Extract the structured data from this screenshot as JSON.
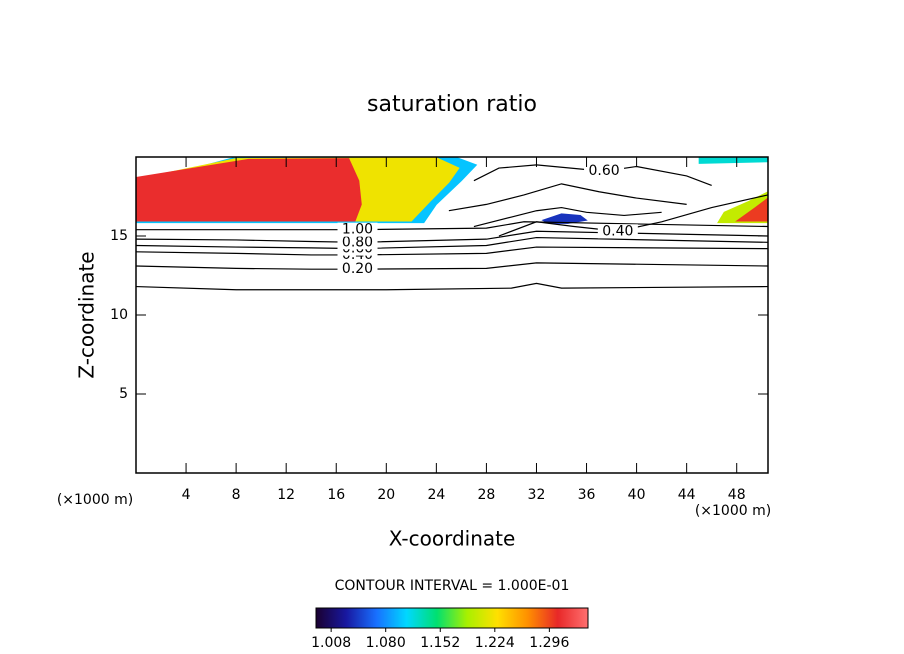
{
  "chart_data": {
    "type": "contour",
    "title": "saturation ratio",
    "x_label": "X-coordinate",
    "y_label": "Z-coordinate",
    "x_unit": "(×1000 m)",
    "y_unit": "(×1000 m)",
    "xlim": [
      0,
      50.5
    ],
    "ylim": [
      0,
      20
    ],
    "xticks": [
      4,
      8,
      12,
      16,
      20,
      24,
      28,
      32,
      36,
      40,
      44,
      48
    ],
    "yticks": [
      5,
      10,
      15
    ],
    "contour_interval": "CONTOUR INTERVAL = 1.000E-01",
    "colormap": [
      "#1a0030",
      "#1818a0",
      "#1870ff",
      "#00d8ff",
      "#00e070",
      "#a8f000",
      "#ffe000",
      "#ff9000",
      "#e82828",
      "#ff7070"
    ],
    "colorbar_lim": [
      0.988,
      1.347
    ],
    "colorbar_ticks": [
      1.008,
      {
        "value": 1.08,
        "label": "1.080"
      },
      1.152,
      1.224,
      1.296
    ],
    "shaded": [
      {
        "level": 1.1,
        "x": [
          0,
          23,
          24,
          26,
          27.2,
          25.5,
          8,
          0
        ],
        "y": [
          15.85,
          15.85,
          17,
          18.5,
          19.5,
          20,
          20,
          18.3
        ]
      },
      {
        "level": 1.22,
        "x": [
          0,
          22,
          23.5,
          25,
          25.8,
          24,
          8,
          0
        ],
        "y": [
          15.95,
          15.95,
          17.2,
          18.4,
          19.3,
          19.95,
          19.9,
          18.6
        ]
      },
      {
        "level": 1.31,
        "x": [
          0,
          17.5,
          18,
          17.8,
          17,
          9,
          0
        ],
        "y": [
          15.95,
          15.95,
          17,
          18.5,
          19.9,
          19.85,
          18.7
        ]
      },
      {
        "level": 1.2,
        "x": [
          46.5,
          50.5,
          50.5,
          49,
          47
        ],
        "y": [
          15.85,
          15.85,
          17.8,
          17.2,
          16.5
        ]
      },
      {
        "level": 1.3,
        "x": [
          48,
          50.5,
          50.5,
          49.5
        ],
        "y": [
          15.95,
          15.95,
          17.4,
          16.8
        ]
      },
      {
        "level": 1.12,
        "x": [
          45,
          50.5,
          50.5,
          45
        ],
        "y": [
          19.6,
          19.7,
          20,
          20
        ]
      },
      {
        "level": 1.04,
        "x": [
          32.5,
          34,
          35.5,
          36,
          34.5,
          33
        ],
        "y": [
          16.0,
          16.4,
          16.3,
          16.0,
          15.8,
          15.8
        ]
      }
    ],
    "contours": [
      {
        "x": [
          0,
          8,
          20,
          30,
          32,
          34,
          50.5
        ],
        "y": [
          11.8,
          11.6,
          11.6,
          11.7,
          12.0,
          11.7,
          11.8
        ]
      },
      {
        "label": "0.20",
        "x": [
          0,
          8,
          14,
          17.7,
          28,
          32,
          50.5
        ],
        "y": [
          13.1,
          12.95,
          12.9,
          12.9,
          12.95,
          13.3,
          13.1
        ]
      },
      {
        "label": "0.40",
        "x": [
          0,
          8,
          14,
          17.7,
          28,
          32,
          50.5
        ],
        "y": [
          14.0,
          13.9,
          13.8,
          13.8,
          13.9,
          14.3,
          14.2
        ]
      },
      {
        "label": "0.60",
        "x": [
          0,
          8,
          14,
          17.7,
          28,
          32,
          50.5
        ],
        "y": [
          14.4,
          14.3,
          14.25,
          14.2,
          14.4,
          14.9,
          14.6
        ]
      },
      {
        "label": "0.80",
        "x": [
          0,
          8,
          14,
          17.7,
          28,
          32,
          50.5
        ],
        "y": [
          14.8,
          14.75,
          14.65,
          14.6,
          14.8,
          15.3,
          15.0
        ]
      },
      {
        "label": "1.00",
        "x": [
          0,
          8,
          14,
          17.7,
          28,
          31,
          50.5
        ],
        "y": [
          15.4,
          15.4,
          15.4,
          15.4,
          15.5,
          15.9,
          15.6
        ]
      },
      {
        "label": "0.60",
        "x": [
          27,
          29,
          32,
          37.4,
          40,
          44,
          46
        ],
        "y": [
          18.5,
          19.3,
          19.5,
          19.1,
          19.4,
          18.8,
          18.2
        ]
      },
      {
        "label": "0.40",
        "x": [
          29,
          32,
          35,
          38.5,
          42,
          46,
          50.5
        ],
        "y": [
          15.0,
          15.9,
          15.6,
          15.3,
          15.9,
          16.8,
          17.6
        ]
      },
      {
        "x": [
          25,
          28,
          31,
          34,
          37,
          40,
          44
        ],
        "y": [
          16.6,
          17.0,
          17.6,
          18.3,
          17.8,
          17.4,
          17.0
        ]
      },
      {
        "x": [
          27,
          30,
          32,
          34,
          36,
          39,
          42
        ],
        "y": [
          15.6,
          16.2,
          16.6,
          16.8,
          16.5,
          16.3,
          16.5
        ]
      }
    ]
  }
}
